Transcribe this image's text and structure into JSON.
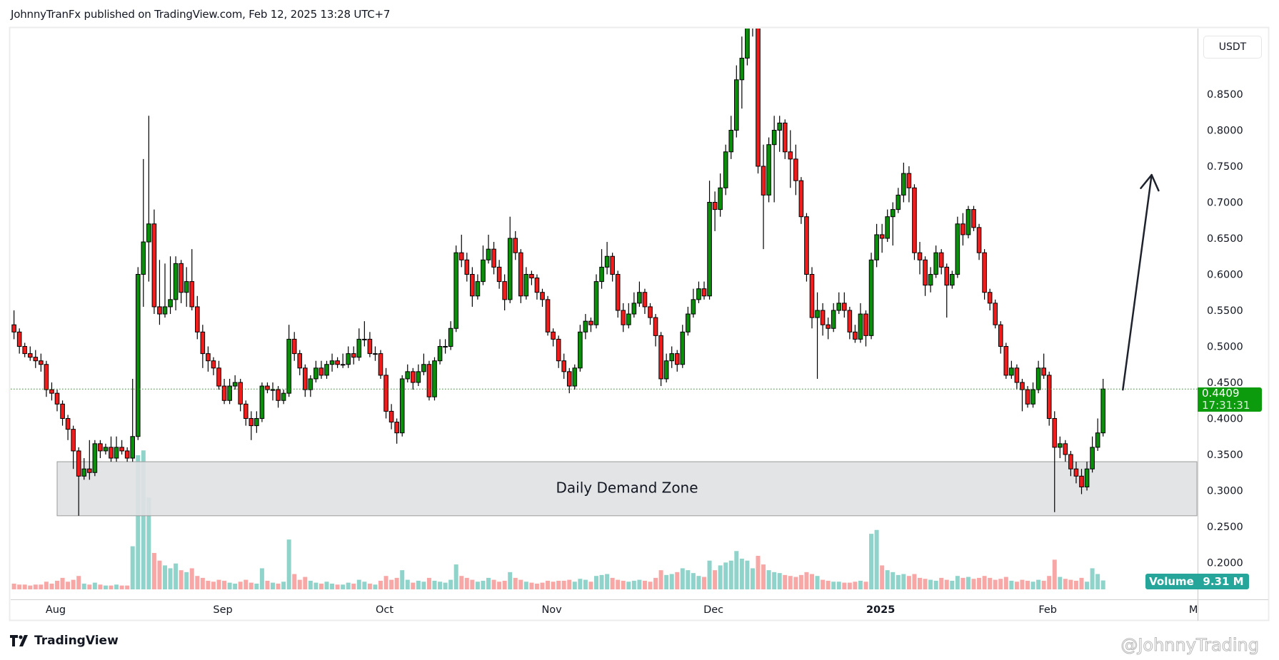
{
  "header": {
    "title": "JohnnyTranFx published on TradingView.com, Feb 12, 2025 13:28 UTC+7"
  },
  "price_axis": {
    "currency": "USDT"
  },
  "last_price": {
    "value": "0.4409",
    "countdown": "17:31:31",
    "color": "#0c9b0c"
  },
  "volume_legend": {
    "label": "Volume",
    "value": "9.31 M",
    "color": "#26a69a"
  },
  "footer": {
    "brand": "TradingView",
    "watermark": "@JohnnyTrading"
  },
  "colors": {
    "up": "#0a8f0a",
    "down": "#f21c1c",
    "volume_up": "#8fd3ca",
    "volume_down": "#f7a8a6",
    "zone": "#e0e1e3"
  },
  "chart_data": {
    "type": "candlestick",
    "interval": "1D",
    "ylim": [
      0.2,
      0.94
    ],
    "y_ticks": [
      "0.2000",
      "0.2500",
      "0.3000",
      "0.3500",
      "0.4000",
      "0.4500",
      "0.5000",
      "0.5500",
      "0.6000",
      "0.6500",
      "0.7000",
      "0.7500",
      "0.8000",
      "0.8500"
    ],
    "x_ticks": [
      {
        "label": "Aug",
        "date": "2024-08-01"
      },
      {
        "label": "Sep",
        "date": "2024-09-01"
      },
      {
        "label": "Oct",
        "date": "2024-10-01"
      },
      {
        "label": "Nov",
        "date": "2024-11-01"
      },
      {
        "label": "Dec",
        "date": "2024-12-01"
      },
      {
        "label": "2025",
        "date": "2025-01-01",
        "bold": true
      },
      {
        "label": "Feb",
        "date": "2025-02-01"
      },
      {
        "label": "Mar",
        "date": "2025-03-01"
      }
    ],
    "annotations": {
      "zone": {
        "label": "Daily Demand Zone",
        "price_top": 0.34,
        "price_bottom": 0.265,
        "date_start": "2024-08-01",
        "date_end": "2025-02-28"
      },
      "arrow": {
        "from": {
          "date": "2025-02-14",
          "price": 0.44
        },
        "to": {
          "date": "2025-02-20",
          "price": 0.738
        }
      }
    },
    "candles_start": "2024-07-24",
    "candles": [
      [
        0.53,
        0.55,
        0.51,
        0.52
      ],
      [
        0.52,
        0.525,
        0.49,
        0.5
      ],
      [
        0.5,
        0.505,
        0.485,
        0.49
      ],
      [
        0.49,
        0.5,
        0.48,
        0.485
      ],
      [
        0.485,
        0.495,
        0.47,
        0.48
      ],
      [
        0.48,
        0.49,
        0.465,
        0.475
      ],
      [
        0.475,
        0.48,
        0.43,
        0.44
      ],
      [
        0.44,
        0.45,
        0.425,
        0.435
      ],
      [
        0.435,
        0.44,
        0.41,
        0.42
      ],
      [
        0.42,
        0.425,
        0.39,
        0.4
      ],
      [
        0.4,
        0.405,
        0.37,
        0.385
      ],
      [
        0.385,
        0.39,
        0.33,
        0.355
      ],
      [
        0.355,
        0.36,
        0.265,
        0.32
      ],
      [
        0.32,
        0.345,
        0.315,
        0.33
      ],
      [
        0.33,
        0.37,
        0.315,
        0.325
      ],
      [
        0.325,
        0.37,
        0.32,
        0.365
      ],
      [
        0.365,
        0.37,
        0.345,
        0.355
      ],
      [
        0.355,
        0.365,
        0.35,
        0.36
      ],
      [
        0.36,
        0.375,
        0.34,
        0.345
      ],
      [
        0.345,
        0.375,
        0.34,
        0.36
      ],
      [
        0.36,
        0.37,
        0.35,
        0.355
      ],
      [
        0.355,
        0.36,
        0.34,
        0.345
      ],
      [
        0.345,
        0.455,
        0.34,
        0.375
      ],
      [
        0.375,
        0.61,
        0.37,
        0.6
      ],
      [
        0.6,
        0.76,
        0.555,
        0.645
      ],
      [
        0.645,
        0.82,
        0.59,
        0.67
      ],
      [
        0.67,
        0.69,
        0.545,
        0.555
      ],
      [
        0.555,
        0.62,
        0.53,
        0.545
      ],
      [
        0.545,
        0.615,
        0.54,
        0.555
      ],
      [
        0.555,
        0.625,
        0.545,
        0.565
      ],
      [
        0.565,
        0.625,
        0.55,
        0.615
      ],
      [
        0.615,
        0.62,
        0.56,
        0.575
      ],
      [
        0.575,
        0.61,
        0.555,
        0.59
      ],
      [
        0.59,
        0.635,
        0.55,
        0.555
      ],
      [
        0.555,
        0.57,
        0.51,
        0.52
      ],
      [
        0.52,
        0.53,
        0.47,
        0.49
      ],
      [
        0.49,
        0.5,
        0.465,
        0.48
      ],
      [
        0.48,
        0.485,
        0.46,
        0.47
      ],
      [
        0.47,
        0.48,
        0.44,
        0.445
      ],
      [
        0.445,
        0.455,
        0.42,
        0.425
      ],
      [
        0.425,
        0.455,
        0.42,
        0.445
      ],
      [
        0.445,
        0.46,
        0.44,
        0.45
      ],
      [
        0.45,
        0.455,
        0.41,
        0.42
      ],
      [
        0.42,
        0.425,
        0.39,
        0.4
      ],
      [
        0.4,
        0.41,
        0.37,
        0.39
      ],
      [
        0.39,
        0.41,
        0.38,
        0.4
      ],
      [
        0.4,
        0.45,
        0.395,
        0.445
      ],
      [
        0.445,
        0.45,
        0.435,
        0.44
      ],
      [
        0.44,
        0.45,
        0.425,
        0.44
      ],
      [
        0.44,
        0.445,
        0.415,
        0.425
      ],
      [
        0.425,
        0.44,
        0.42,
        0.435
      ],
      [
        0.435,
        0.53,
        0.43,
        0.51
      ],
      [
        0.51,
        0.52,
        0.48,
        0.49
      ],
      [
        0.49,
        0.495,
        0.46,
        0.47
      ],
      [
        0.47,
        0.475,
        0.43,
        0.44
      ],
      [
        0.44,
        0.46,
        0.43,
        0.455
      ],
      [
        0.455,
        0.48,
        0.45,
        0.47
      ],
      [
        0.47,
        0.48,
        0.455,
        0.46
      ],
      [
        0.46,
        0.48,
        0.455,
        0.475
      ],
      [
        0.475,
        0.49,
        0.465,
        0.48
      ],
      [
        0.48,
        0.485,
        0.47,
        0.475
      ],
      [
        0.475,
        0.49,
        0.47,
        0.475
      ],
      [
        0.475,
        0.5,
        0.47,
        0.49
      ],
      [
        0.49,
        0.5,
        0.475,
        0.485
      ],
      [
        0.485,
        0.525,
        0.48,
        0.51
      ],
      [
        0.51,
        0.535,
        0.5,
        0.51
      ],
      [
        0.51,
        0.52,
        0.485,
        0.49
      ],
      [
        0.49,
        0.5,
        0.48,
        0.49
      ],
      [
        0.49,
        0.495,
        0.455,
        0.46
      ],
      [
        0.46,
        0.47,
        0.4,
        0.41
      ],
      [
        0.41,
        0.42,
        0.385,
        0.395
      ],
      [
        0.395,
        0.4,
        0.365,
        0.38
      ],
      [
        0.38,
        0.46,
        0.375,
        0.455
      ],
      [
        0.455,
        0.475,
        0.45,
        0.465
      ],
      [
        0.465,
        0.47,
        0.44,
        0.45
      ],
      [
        0.45,
        0.475,
        0.445,
        0.465
      ],
      [
        0.465,
        0.49,
        0.46,
        0.475
      ],
      [
        0.475,
        0.48,
        0.425,
        0.43
      ],
      [
        0.43,
        0.485,
        0.425,
        0.48
      ],
      [
        0.48,
        0.51,
        0.475,
        0.5
      ],
      [
        0.5,
        0.51,
        0.49,
        0.5
      ],
      [
        0.5,
        0.535,
        0.495,
        0.525
      ],
      [
        0.525,
        0.64,
        0.52,
        0.63
      ],
      [
        0.63,
        0.655,
        0.61,
        0.62
      ],
      [
        0.62,
        0.63,
        0.59,
        0.6
      ],
      [
        0.6,
        0.61,
        0.555,
        0.57
      ],
      [
        0.57,
        0.6,
        0.565,
        0.59
      ],
      [
        0.59,
        0.64,
        0.585,
        0.62
      ],
      [
        0.62,
        0.655,
        0.615,
        0.635
      ],
      [
        0.635,
        0.645,
        0.6,
        0.61
      ],
      [
        0.61,
        0.62,
        0.58,
        0.59
      ],
      [
        0.59,
        0.6,
        0.55,
        0.565
      ],
      [
        0.565,
        0.68,
        0.56,
        0.65
      ],
      [
        0.65,
        0.66,
        0.62,
        0.63
      ],
      [
        0.63,
        0.635,
        0.56,
        0.57
      ],
      [
        0.57,
        0.61,
        0.565,
        0.6
      ],
      [
        0.6,
        0.605,
        0.585,
        0.595
      ],
      [
        0.595,
        0.6,
        0.565,
        0.575
      ],
      [
        0.575,
        0.58,
        0.555,
        0.565
      ],
      [
        0.565,
        0.57,
        0.515,
        0.52
      ],
      [
        0.52,
        0.525,
        0.5,
        0.51
      ],
      [
        0.51,
        0.515,
        0.47,
        0.48
      ],
      [
        0.48,
        0.49,
        0.455,
        0.465
      ],
      [
        0.465,
        0.47,
        0.435,
        0.445
      ],
      [
        0.445,
        0.475,
        0.44,
        0.47
      ],
      [
        0.47,
        0.53,
        0.465,
        0.52
      ],
      [
        0.52,
        0.545,
        0.51,
        0.535
      ],
      [
        0.535,
        0.54,
        0.52,
        0.53
      ],
      [
        0.53,
        0.6,
        0.525,
        0.59
      ],
      [
        0.59,
        0.635,
        0.58,
        0.61
      ],
      [
        0.61,
        0.645,
        0.6,
        0.625
      ],
      [
        0.625,
        0.63,
        0.59,
        0.6
      ],
      [
        0.6,
        0.605,
        0.54,
        0.55
      ],
      [
        0.55,
        0.56,
        0.52,
        0.53
      ],
      [
        0.53,
        0.56,
        0.525,
        0.545
      ],
      [
        0.545,
        0.575,
        0.54,
        0.56
      ],
      [
        0.56,
        0.59,
        0.555,
        0.575
      ],
      [
        0.575,
        0.58,
        0.545,
        0.555
      ],
      [
        0.555,
        0.56,
        0.53,
        0.54
      ],
      [
        0.54,
        0.545,
        0.5,
        0.515
      ],
      [
        0.515,
        0.52,
        0.445,
        0.455
      ],
      [
        0.455,
        0.49,
        0.45,
        0.48
      ],
      [
        0.48,
        0.5,
        0.47,
        0.49
      ],
      [
        0.49,
        0.495,
        0.465,
        0.475
      ],
      [
        0.475,
        0.53,
        0.47,
        0.52
      ],
      [
        0.52,
        0.555,
        0.515,
        0.545
      ],
      [
        0.545,
        0.58,
        0.54,
        0.565
      ],
      [
        0.565,
        0.59,
        0.56,
        0.58
      ],
      [
        0.58,
        0.59,
        0.565,
        0.57
      ],
      [
        0.57,
        0.73,
        0.565,
        0.7
      ],
      [
        0.7,
        0.715,
        0.66,
        0.69
      ],
      [
        0.69,
        0.74,
        0.68,
        0.72
      ],
      [
        0.72,
        0.78,
        0.71,
        0.77
      ],
      [
        0.77,
        0.82,
        0.76,
        0.8
      ],
      [
        0.8,
        0.89,
        0.79,
        0.87
      ],
      [
        0.87,
        0.93,
        0.83,
        0.9
      ],
      [
        0.9,
        0.96,
        0.89,
        0.95
      ],
      [
        0.95,
        1.0,
        0.93,
        0.97
      ],
      [
        0.97,
        0.98,
        0.74,
        0.75
      ],
      [
        0.75,
        0.78,
        0.635,
        0.71
      ],
      [
        0.71,
        0.79,
        0.7,
        0.78
      ],
      [
        0.78,
        0.82,
        0.7,
        0.8
      ],
      [
        0.8,
        0.82,
        0.77,
        0.81
      ],
      [
        0.81,
        0.815,
        0.76,
        0.77
      ],
      [
        0.77,
        0.8,
        0.72,
        0.76
      ],
      [
        0.76,
        0.78,
        0.71,
        0.73
      ],
      [
        0.73,
        0.735,
        0.67,
        0.68
      ],
      [
        0.68,
        0.685,
        0.59,
        0.6
      ],
      [
        0.6,
        0.61,
        0.525,
        0.54
      ],
      [
        0.54,
        0.575,
        0.455,
        0.55
      ],
      [
        0.55,
        0.56,
        0.515,
        0.53
      ],
      [
        0.53,
        0.54,
        0.51,
        0.525
      ],
      [
        0.525,
        0.56,
        0.52,
        0.55
      ],
      [
        0.55,
        0.575,
        0.545,
        0.56
      ],
      [
        0.56,
        0.575,
        0.54,
        0.55
      ],
      [
        0.55,
        0.555,
        0.51,
        0.52
      ],
      [
        0.52,
        0.53,
        0.505,
        0.51
      ],
      [
        0.51,
        0.56,
        0.505,
        0.545
      ],
      [
        0.545,
        0.55,
        0.5,
        0.515
      ],
      [
        0.515,
        0.63,
        0.51,
        0.62
      ],
      [
        0.62,
        0.67,
        0.61,
        0.655
      ],
      [
        0.655,
        0.67,
        0.63,
        0.65
      ],
      [
        0.65,
        0.69,
        0.645,
        0.68
      ],
      [
        0.68,
        0.7,
        0.64,
        0.69
      ],
      [
        0.69,
        0.72,
        0.685,
        0.71
      ],
      [
        0.71,
        0.755,
        0.7,
        0.74
      ],
      [
        0.74,
        0.75,
        0.7,
        0.72
      ],
      [
        0.72,
        0.725,
        0.62,
        0.63
      ],
      [
        0.63,
        0.645,
        0.6,
        0.62
      ],
      [
        0.62,
        0.625,
        0.57,
        0.585
      ],
      [
        0.585,
        0.61,
        0.575,
        0.6
      ],
      [
        0.6,
        0.64,
        0.595,
        0.63
      ],
      [
        0.63,
        0.635,
        0.6,
        0.61
      ],
      [
        0.61,
        0.615,
        0.54,
        0.585
      ],
      [
        0.585,
        0.605,
        0.58,
        0.6
      ],
      [
        0.6,
        0.68,
        0.595,
        0.67
      ],
      [
        0.67,
        0.685,
        0.64,
        0.655
      ],
      [
        0.655,
        0.695,
        0.65,
        0.69
      ],
      [
        0.69,
        0.695,
        0.66,
        0.665
      ],
      [
        0.665,
        0.67,
        0.62,
        0.63
      ],
      [
        0.63,
        0.635,
        0.565,
        0.575
      ],
      [
        0.575,
        0.58,
        0.55,
        0.56
      ],
      [
        0.56,
        0.565,
        0.525,
        0.53
      ],
      [
        0.53,
        0.535,
        0.49,
        0.5
      ],
      [
        0.5,
        0.505,
        0.455,
        0.46
      ],
      [
        0.46,
        0.48,
        0.455,
        0.47
      ],
      [
        0.47,
        0.475,
        0.44,
        0.45
      ],
      [
        0.45,
        0.455,
        0.41,
        0.44
      ],
      [
        0.44,
        0.445,
        0.415,
        0.42
      ],
      [
        0.42,
        0.45,
        0.415,
        0.44
      ],
      [
        0.44,
        0.48,
        0.435,
        0.47
      ],
      [
        0.47,
        0.49,
        0.455,
        0.46
      ],
      [
        0.46,
        0.465,
        0.39,
        0.4
      ],
      [
        0.4,
        0.41,
        0.27,
        0.36
      ],
      [
        0.36,
        0.375,
        0.345,
        0.365
      ],
      [
        0.365,
        0.37,
        0.34,
        0.35
      ],
      [
        0.35,
        0.355,
        0.32,
        0.33
      ],
      [
        0.33,
        0.34,
        0.31,
        0.32
      ],
      [
        0.32,
        0.33,
        0.295,
        0.305
      ],
      [
        0.305,
        0.34,
        0.3,
        0.33
      ],
      [
        0.33,
        0.375,
        0.325,
        0.36
      ],
      [
        0.36,
        0.4,
        0.355,
        0.38
      ],
      [
        0.38,
        0.455,
        0.375,
        0.4409
      ]
    ],
    "volume_millions": [
      6,
      5,
      5,
      4,
      5,
      5,
      8,
      6,
      9,
      12,
      8,
      10,
      14,
      6,
      5,
      7,
      5,
      4,
      4,
      5,
      4,
      4,
      45,
      140,
      145,
      96,
      38,
      30,
      25,
      22,
      27,
      20,
      18,
      22,
      14,
      12,
      9,
      8,
      10,
      9,
      7,
      6,
      8,
      10,
      7,
      6,
      22,
      9,
      7,
      6,
      8,
      52,
      16,
      10,
      13,
      9,
      7,
      6,
      8,
      6,
      5,
      5,
      7,
      6,
      10,
      8,
      6,
      5,
      9,
      14,
      10,
      12,
      20,
      10,
      7,
      9,
      8,
      12,
      9,
      8,
      7,
      10,
      26,
      14,
      12,
      10,
      8,
      9,
      12,
      10,
      8,
      9,
      18,
      12,
      10,
      8,
      7,
      6,
      7,
      9,
      8,
      9,
      9,
      10,
      8,
      11,
      10,
      8,
      14,
      15,
      16,
      12,
      10,
      9,
      8,
      9,
      10,
      9,
      8,
      12,
      20,
      15,
      16,
      18,
      22,
      20,
      17,
      14,
      13,
      30,
      20,
      25,
      28,
      30,
      40,
      32,
      30,
      22,
      35,
      26,
      20,
      18,
      17,
      15,
      14,
      13,
      15,
      18,
      16,
      14,
      10,
      9,
      8,
      8,
      7,
      7,
      8,
      9,
      8,
      58,
      62,
      25,
      20,
      18,
      15,
      16,
      14,
      16,
      12,
      11,
      10,
      9,
      12,
      10,
      9,
      14,
      12,
      13,
      11,
      12,
      14,
      12,
      10,
      11,
      13,
      9,
      8,
      10,
      9,
      8,
      10,
      9,
      14,
      31,
      13,
      11,
      10,
      9,
      12,
      8,
      22,
      16,
      9.31
    ]
  }
}
